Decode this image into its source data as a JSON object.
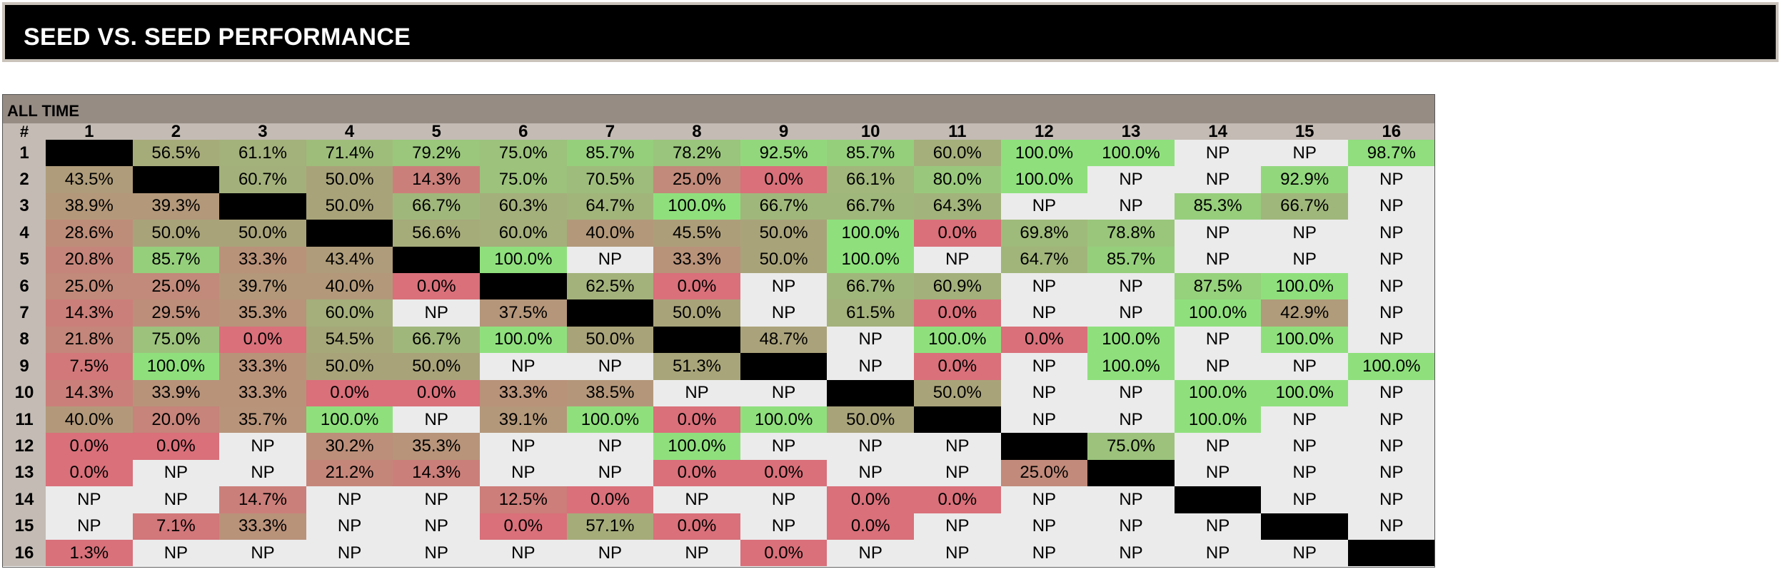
{
  "page": {
    "title": "SEED VS. SEED PERFORMANCE",
    "section": "ALL TIME",
    "corner_label": "#"
  },
  "colors": {
    "high": "#8fe07d",
    "mid": "#a9a37a",
    "low": "#d9707a",
    "not_played": "#ebebeb",
    "diagonal": "#000000",
    "header": "#c3bbb4",
    "section_header": "#968c84"
  },
  "chart_data": {
    "type": "heatmap",
    "title": "SEED VS. SEED PERFORMANCE",
    "subtitle": "ALL TIME",
    "x_labels": [
      "1",
      "2",
      "3",
      "4",
      "5",
      "6",
      "7",
      "8",
      "9",
      "10",
      "11",
      "12",
      "13",
      "14",
      "15",
      "16"
    ],
    "y_labels": [
      "1",
      "2",
      "3",
      "4",
      "5",
      "6",
      "7",
      "8",
      "9",
      "10",
      "11",
      "12",
      "13",
      "14",
      "15",
      "16"
    ],
    "values": [
      [
        "",
        "56.5%",
        "61.1%",
        "71.4%",
        "79.2%",
        "75.0%",
        "85.7%",
        "78.2%",
        "92.5%",
        "85.7%",
        "60.0%",
        "100.0%",
        "100.0%",
        "NP",
        "NP",
        "98.7%"
      ],
      [
        "43.5%",
        "",
        "60.7%",
        "50.0%",
        "14.3%",
        "75.0%",
        "70.5%",
        "25.0%",
        "0.0%",
        "66.1%",
        "80.0%",
        "100.0%",
        "NP",
        "NP",
        "92.9%",
        "NP"
      ],
      [
        "38.9%",
        "39.3%",
        "",
        "50.0%",
        "66.7%",
        "60.3%",
        "64.7%",
        "100.0%",
        "66.7%",
        "66.7%",
        "64.3%",
        "NP",
        "NP",
        "85.3%",
        "66.7%",
        "NP"
      ],
      [
        "28.6%",
        "50.0%",
        "50.0%",
        "",
        "56.6%",
        "60.0%",
        "40.0%",
        "45.5%",
        "50.0%",
        "100.0%",
        "0.0%",
        "69.8%",
        "78.8%",
        "NP",
        "NP",
        "NP"
      ],
      [
        "20.8%",
        "85.7%",
        "33.3%",
        "43.4%",
        "",
        "100.0%",
        "NP",
        "33.3%",
        "50.0%",
        "100.0%",
        "NP",
        "64.7%",
        "85.7%",
        "NP",
        "NP",
        "NP"
      ],
      [
        "25.0%",
        "25.0%",
        "39.7%",
        "40.0%",
        "0.0%",
        "",
        "62.5%",
        "0.0%",
        "NP",
        "66.7%",
        "60.9%",
        "NP",
        "NP",
        "87.5%",
        "100.0%",
        "NP"
      ],
      [
        "14.3%",
        "29.5%",
        "35.3%",
        "60.0%",
        "NP",
        "37.5%",
        "",
        "50.0%",
        "NP",
        "61.5%",
        "0.0%",
        "NP",
        "NP",
        "100.0%",
        "42.9%",
        "NP"
      ],
      [
        "21.8%",
        "75.0%",
        "0.0%",
        "54.5%",
        "66.7%",
        "100.0%",
        "50.0%",
        "",
        "48.7%",
        "NP",
        "100.0%",
        "0.0%",
        "100.0%",
        "NP",
        "100.0%",
        "NP"
      ],
      [
        "7.5%",
        "100.0%",
        "33.3%",
        "50.0%",
        "50.0%",
        "NP",
        "NP",
        "51.3%",
        "",
        "NP",
        "0.0%",
        "NP",
        "100.0%",
        "NP",
        "NP",
        "100.0%"
      ],
      [
        "14.3%",
        "33.9%",
        "33.3%",
        "0.0%",
        "0.0%",
        "33.3%",
        "38.5%",
        "NP",
        "NP",
        "",
        "50.0%",
        "NP",
        "NP",
        "100.0%",
        "100.0%",
        "NP"
      ],
      [
        "40.0%",
        "20.0%",
        "35.7%",
        "100.0%",
        "NP",
        "39.1%",
        "100.0%",
        "0.0%",
        "100.0%",
        "50.0%",
        "",
        "NP",
        "NP",
        "100.0%",
        "NP",
        "NP"
      ],
      [
        "0.0%",
        "0.0%",
        "NP",
        "30.2%",
        "35.3%",
        "NP",
        "NP",
        "100.0%",
        "NP",
        "NP",
        "NP",
        "",
        "75.0%",
        "NP",
        "NP",
        "NP"
      ],
      [
        "0.0%",
        "NP",
        "NP",
        "21.2%",
        "14.3%",
        "NP",
        "NP",
        "0.0%",
        "0.0%",
        "NP",
        "NP",
        "25.0%",
        "",
        "NP",
        "NP",
        "NP"
      ],
      [
        "NP",
        "NP",
        "14.7%",
        "NP",
        "NP",
        "12.5%",
        "0.0%",
        "NP",
        "NP",
        "0.0%",
        "0.0%",
        "NP",
        "NP",
        "",
        "NP",
        "NP"
      ],
      [
        "NP",
        "7.1%",
        "33.3%",
        "NP",
        "NP",
        "0.0%",
        "57.1%",
        "0.0%",
        "NP",
        "0.0%",
        "NP",
        "NP",
        "NP",
        "NP",
        "",
        "NP"
      ],
      [
        "1.3%",
        "NP",
        "NP",
        "NP",
        "NP",
        "NP",
        "NP",
        "NP",
        "0.0%",
        "NP",
        "NP",
        "NP",
        "NP",
        "NP",
        "NP",
        ""
      ]
    ]
  }
}
